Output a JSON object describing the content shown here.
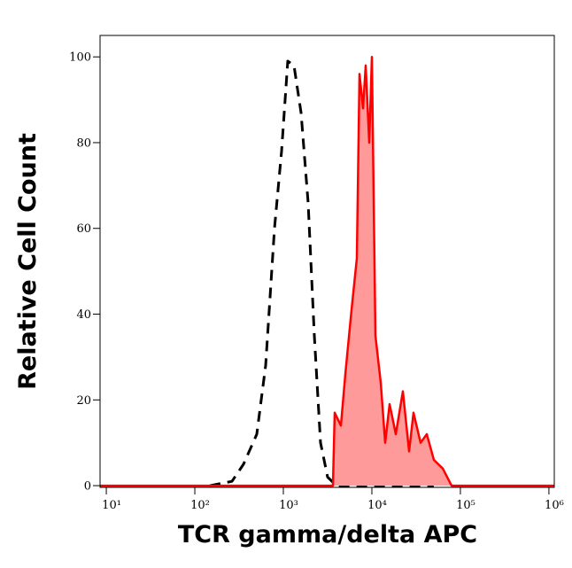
{
  "chart_data": {
    "type": "line",
    "x_label": "TCR gamma/delta APC",
    "y_label": "Relative Cell Count",
    "xscale": "log",
    "xlim": [
      8.5,
      1150000
    ],
    "ylim": [
      -0.4,
      105
    ],
    "xticks": [
      {
        "value": 10,
        "label": "10¹"
      },
      {
        "value": 100,
        "label": "10²"
      },
      {
        "value": 1000,
        "label": "10³"
      },
      {
        "value": 10000,
        "label": "10⁴"
      },
      {
        "value": 100000,
        "label": "10⁵"
      },
      {
        "value": 1000000,
        "label": "10⁶"
      }
    ],
    "yticks": [
      0,
      20,
      40,
      60,
      80,
      100
    ],
    "series": [
      {
        "color": "#000000",
        "dashed": true,
        "filled": false,
        "x": [
          148,
          263,
          355,
          501,
          631,
          794,
          955,
          1122,
          1318,
          1585,
          1905,
          2239,
          2630,
          3162,
          3981,
          20000,
          50000
        ],
        "values": [
          0,
          1,
          5,
          12,
          28,
          60,
          78,
          99,
          98,
          87,
          66,
          35,
          10,
          2,
          0,
          0,
          0
        ]
      },
      {
        "color": "#ff0000",
        "fill": "#ff9a9a",
        "dashed": false,
        "filled": true,
        "x": [
          8.5,
          3631,
          3802,
          4467,
          5012,
          5888,
          6761,
          7244,
          7943,
          8511,
          9333,
          10000,
          10965,
          12589,
          14125,
          15849,
          18621,
          22387,
          26303,
          29512,
          35481,
          41687,
          50119,
          63096,
          79433,
          1148154
        ],
        "values": [
          0,
          0,
          17,
          14,
          26,
          41,
          53,
          96,
          88,
          98,
          80,
          100,
          35,
          24,
          10,
          19,
          12,
          22,
          8,
          17,
          10,
          12,
          6,
          4,
          0,
          0
        ]
      }
    ]
  }
}
